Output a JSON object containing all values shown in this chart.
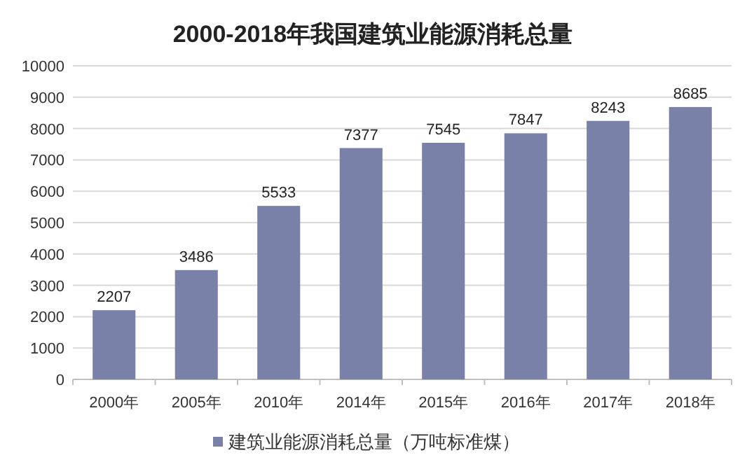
{
  "chart_data": {
    "type": "bar",
    "title": "2000-2018年我国建筑业能源消耗总量",
    "categories": [
      "2000年",
      "2005年",
      "2010年",
      "2014年",
      "2015年",
      "2016年",
      "2017年",
      "2018年"
    ],
    "series": [
      {
        "name": "建筑业能源消耗总量（万吨标准煤）",
        "color": "#7a81a8",
        "values": [
          2207,
          3486,
          5533,
          7377,
          7545,
          7847,
          8243,
          8685
        ]
      }
    ],
    "ylim": [
      0,
      10000
    ],
    "yticks": [
      0,
      1000,
      2000,
      3000,
      4000,
      5000,
      6000,
      7000,
      8000,
      9000,
      10000
    ],
    "grid": "y",
    "legend": "bottom",
    "data_labels": true
  }
}
